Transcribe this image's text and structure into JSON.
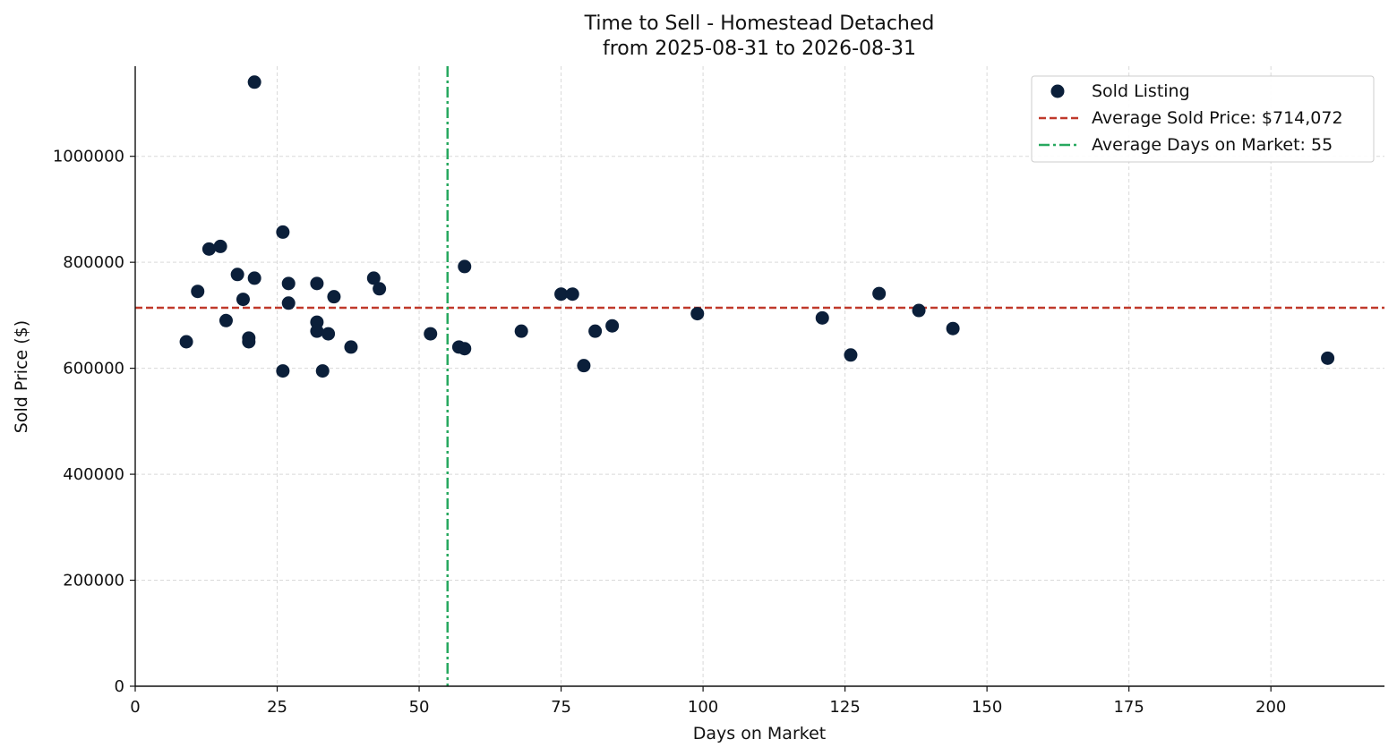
{
  "chart_data": {
    "type": "scatter",
    "title_lines": [
      "Time to Sell - Homestead Detached",
      "from 2025-08-31 to 2026-08-31"
    ],
    "xlabel": "Days on Market",
    "ylabel": "Sold Price ($)",
    "xlim": [
      0,
      220
    ],
    "ylim": [
      0,
      1170000
    ],
    "x_ticks": [
      0,
      25,
      50,
      75,
      100,
      125,
      150,
      175,
      200
    ],
    "y_ticks": [
      0,
      200000,
      400000,
      600000,
      800000,
      1000000
    ],
    "grid": true,
    "legend_position": "top-right",
    "series": [
      {
        "name": "Sold Listing",
        "color": "#0b1f3a",
        "points": [
          {
            "x": 9,
            "y": 650000
          },
          {
            "x": 11,
            "y": 745000
          },
          {
            "x": 13,
            "y": 825000
          },
          {
            "x": 15,
            "y": 830000
          },
          {
            "x": 16,
            "y": 690000
          },
          {
            "x": 18,
            "y": 777000
          },
          {
            "x": 19,
            "y": 730000
          },
          {
            "x": 20,
            "y": 657000
          },
          {
            "x": 20,
            "y": 650000
          },
          {
            "x": 21,
            "y": 1140000
          },
          {
            "x": 21,
            "y": 770000
          },
          {
            "x": 26,
            "y": 857000
          },
          {
            "x": 26,
            "y": 595000
          },
          {
            "x": 27,
            "y": 760000
          },
          {
            "x": 27,
            "y": 723000
          },
          {
            "x": 32,
            "y": 760000
          },
          {
            "x": 32,
            "y": 687000
          },
          {
            "x": 32,
            "y": 670000
          },
          {
            "x": 33,
            "y": 595000
          },
          {
            "x": 34,
            "y": 665000
          },
          {
            "x": 35,
            "y": 735000
          },
          {
            "x": 38,
            "y": 640000
          },
          {
            "x": 42,
            "y": 770000
          },
          {
            "x": 43,
            "y": 750000
          },
          {
            "x": 52,
            "y": 665000
          },
          {
            "x": 57,
            "y": 640000
          },
          {
            "x": 58,
            "y": 637000
          },
          {
            "x": 58,
            "y": 792000
          },
          {
            "x": 68,
            "y": 670000
          },
          {
            "x": 75,
            "y": 740000
          },
          {
            "x": 77,
            "y": 740000
          },
          {
            "x": 79,
            "y": 605000
          },
          {
            "x": 81,
            "y": 670000
          },
          {
            "x": 84,
            "y": 680000
          },
          {
            "x": 99,
            "y": 703000
          },
          {
            "x": 121,
            "y": 695000
          },
          {
            "x": 126,
            "y": 625000
          },
          {
            "x": 131,
            "y": 741000
          },
          {
            "x": 138,
            "y": 709000
          },
          {
            "x": 144,
            "y": 675000
          },
          {
            "x": 210,
            "y": 619000
          }
        ]
      }
    ],
    "reference_lines": [
      {
        "name": "Average Sold Price: $714,072",
        "orientation": "horizontal",
        "value": 714072,
        "color": "#c0392b",
        "style": "dashed"
      },
      {
        "name": "Average Days on Market: 55",
        "orientation": "vertical",
        "value": 55,
        "color": "#27a85f",
        "style": "dashdot"
      }
    ]
  }
}
